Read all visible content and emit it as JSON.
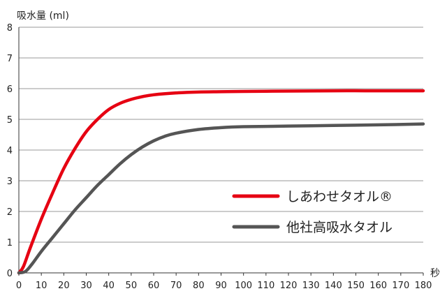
{
  "chart_data": {
    "type": "line",
    "ylabel": "吸水量 (ml)",
    "xlabel": "秒",
    "xlim": [
      0,
      180
    ],
    "ylim": [
      0,
      8
    ],
    "xticks": [
      0,
      10,
      20,
      30,
      40,
      50,
      60,
      70,
      80,
      90,
      100,
      110,
      120,
      130,
      140,
      150,
      160,
      170,
      180
    ],
    "yticks": [
      0,
      1,
      2,
      3,
      4,
      5,
      6,
      7,
      8
    ],
    "grid": "horizontal",
    "legend_position": "center-right",
    "series": [
      {
        "name": "しあわせタオル®",
        "color": "#e60012",
        "points": [
          [
            0,
            0
          ],
          [
            2,
            0.2
          ],
          [
            5,
            0.8
          ],
          [
            10,
            1.75
          ],
          [
            15,
            2.6
          ],
          [
            20,
            3.4
          ],
          [
            25,
            4.05
          ],
          [
            30,
            4.6
          ],
          [
            35,
            5.0
          ],
          [
            40,
            5.32
          ],
          [
            45,
            5.52
          ],
          [
            50,
            5.65
          ],
          [
            55,
            5.74
          ],
          [
            60,
            5.8
          ],
          [
            70,
            5.86
          ],
          [
            80,
            5.89
          ],
          [
            90,
            5.9
          ],
          [
            100,
            5.91
          ],
          [
            120,
            5.92
          ],
          [
            140,
            5.93
          ],
          [
            160,
            5.93
          ],
          [
            180,
            5.93
          ]
        ]
      },
      {
        "name": "他社高吸水タオル",
        "color": "#555555",
        "points": [
          [
            0,
            0
          ],
          [
            3,
            0.05
          ],
          [
            6,
            0.3
          ],
          [
            10,
            0.7
          ],
          [
            15,
            1.15
          ],
          [
            20,
            1.6
          ],
          [
            25,
            2.05
          ],
          [
            30,
            2.45
          ],
          [
            35,
            2.85
          ],
          [
            40,
            3.2
          ],
          [
            45,
            3.55
          ],
          [
            50,
            3.85
          ],
          [
            55,
            4.1
          ],
          [
            60,
            4.3
          ],
          [
            65,
            4.45
          ],
          [
            70,
            4.55
          ],
          [
            80,
            4.67
          ],
          [
            90,
            4.73
          ],
          [
            100,
            4.76
          ],
          [
            120,
            4.78
          ],
          [
            140,
            4.8
          ],
          [
            160,
            4.82
          ],
          [
            180,
            4.85
          ]
        ]
      }
    ]
  }
}
